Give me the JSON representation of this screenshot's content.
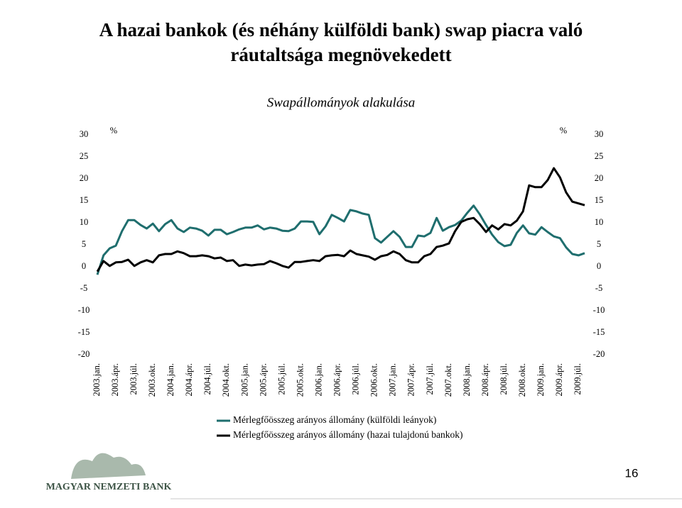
{
  "slide": {
    "title_lines": [
      "A hazai bankok (és néhány külföldi bank) swap piacra való",
      "ráutaltsága megnövekedett"
    ],
    "logo_text": "MAGYAR NEMZETI BANK",
    "page_number": 16
  },
  "chart_data": {
    "type": "line",
    "title": "Swapállományok alakulása",
    "y_unit": "%",
    "y2_unit": "%",
    "categories": [
      "2003.jan.",
      null,
      null,
      "2003.ápr.",
      null,
      null,
      "2003.júl.",
      null,
      null,
      "2003.okt.",
      null,
      null,
      "2004.jan.",
      null,
      null,
      "2004.ápr.",
      null,
      null,
      "2004.júl.",
      null,
      null,
      "2004.okt.",
      null,
      null,
      "2005.jan.",
      null,
      null,
      "2005.ápr.",
      null,
      null,
      "2005.júl.",
      null,
      null,
      "2005.okt.",
      null,
      null,
      "2006.jan.",
      null,
      null,
      "2006.ápr.",
      null,
      null,
      "2006.júl.",
      null,
      null,
      "2006.okt.",
      null,
      null,
      "2007.jan.",
      null,
      null,
      "2007.ápr.",
      null,
      null,
      "2007.júl.",
      null,
      null,
      "2007.okt.",
      null,
      null,
      "2008.jan.",
      null,
      null,
      "2008.ápr.",
      null,
      null,
      "2008.júl.",
      null,
      null,
      "2008.okt.",
      null,
      null,
      "2009.jan.",
      null,
      null,
      "2009.ápr.",
      null,
      null,
      "2009.júl.",
      null
    ],
    "series": [
      {
        "name": "Mérlegfőösszeg arányos állomány (külföldi leányok)",
        "color": "#1f6e6e",
        "values": [
          -1.8,
          2.6,
          4.2,
          4.8,
          8.1,
          10.6,
          10.6,
          9.5,
          8.7,
          9.8,
          8.1,
          9.7,
          10.6,
          8.7,
          7.9,
          8.9,
          8.7,
          8.2,
          7.1,
          8.4,
          8.4,
          7.4,
          7.9,
          8.5,
          8.9,
          8.9,
          9.4,
          8.5,
          8.9,
          8.7,
          8.2,
          8.1,
          8.7,
          10.3,
          10.3,
          10.2,
          7.4,
          9.2,
          11.8,
          11.1,
          10.3,
          12.9,
          12.6,
          12.1,
          11.8,
          6.5,
          5.5,
          6.8,
          8.1,
          6.8,
          4.5,
          4.5,
          7.1,
          6.9,
          7.7,
          11.1,
          8.2,
          9.0,
          9.5,
          10.5,
          12.3,
          13.9,
          11.9,
          9.5,
          7.3,
          5.6,
          4.7,
          5.0,
          7.7,
          9.4,
          7.6,
          7.3,
          9.0,
          7.9,
          6.9,
          6.5,
          4.4,
          2.9,
          2.6,
          3.1
        ]
      },
      {
        "name": "Mérlegfőösszeg arányos állomány (hazai tulajdonú bankok)",
        "color": "#000000",
        "values": [
          -1.1,
          1.3,
          0.2,
          1.0,
          1.1,
          1.6,
          0.2,
          1.0,
          1.5,
          1.0,
          2.6,
          2.9,
          2.9,
          3.5,
          3.1,
          2.4,
          2.4,
          2.6,
          2.4,
          1.9,
          2.1,
          1.3,
          1.5,
          0.2,
          0.5,
          0.3,
          0.5,
          0.6,
          1.3,
          0.8,
          0.2,
          -0.2,
          1.1,
          1.1,
          1.3,
          1.5,
          1.3,
          2.4,
          2.6,
          2.7,
          2.4,
          3.7,
          2.9,
          2.6,
          2.3,
          1.6,
          2.4,
          2.7,
          3.5,
          2.9,
          1.5,
          1.0,
          1.0,
          2.4,
          2.9,
          4.5,
          4.8,
          5.3,
          8.1,
          10.2,
          10.8,
          11.1,
          9.7,
          7.9,
          9.4,
          8.5,
          9.7,
          9.4,
          10.5,
          12.6,
          18.5,
          18.1,
          18.1,
          19.7,
          22.4,
          20.3,
          16.9,
          14.8,
          14.4,
          14.0
        ]
      }
    ],
    "ylim": [
      -20,
      30
    ],
    "yticks": [
      -20,
      -15,
      -10,
      -5,
      0,
      5,
      10,
      15,
      20,
      25,
      30
    ],
    "y2lim": [
      -20,
      30
    ],
    "y2ticks": [
      -20,
      -15,
      -10,
      -5,
      0,
      5,
      10,
      15,
      20,
      25,
      30
    ],
    "grid": false
  }
}
